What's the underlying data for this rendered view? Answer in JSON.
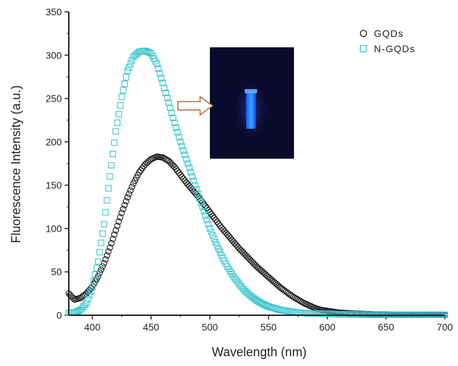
{
  "chart_data": {
    "type": "scatter",
    "xlabel": "Wavelength (nm)",
    "ylabel": "Fluorescence Intensity (a.u.)",
    "xlim": [
      380,
      700
    ],
    "ylim": [
      0,
      350
    ],
    "x_ticks": [
      400,
      450,
      500,
      550,
      600,
      650,
      700
    ],
    "y_ticks": [
      0,
      50,
      100,
      150,
      200,
      250,
      300,
      350
    ],
    "legend_position": "top-right",
    "inset": "photo of vial glowing blue under UV light, with arrow pointing from N-GQDs peak",
    "series": [
      {
        "name": "GQDs",
        "marker": "circle",
        "color": "#1a1a1a",
        "x": [
          380,
          385,
          390,
          395,
          400,
          405,
          410,
          415,
          420,
          425,
          430,
          435,
          440,
          445,
          450,
          455,
          460,
          465,
          470,
          475,
          480,
          485,
          490,
          495,
          500,
          505,
          510,
          515,
          520,
          525,
          530,
          535,
          540,
          545,
          550,
          555,
          560,
          565,
          570,
          575,
          580,
          585,
          590,
          595,
          600,
          605,
          610,
          620,
          630,
          640,
          650,
          660,
          670,
          680,
          690,
          700
        ],
        "y": [
          25,
          18,
          20,
          25,
          33,
          45,
          60,
          78,
          98,
          118,
          136,
          152,
          165,
          174,
          180,
          183,
          182,
          178,
          171,
          162,
          153,
          145,
          137,
          128,
          119,
          110,
          101,
          93,
          85,
          77,
          70,
          63,
          56,
          50,
          44,
          38,
          32,
          27,
          22,
          18,
          14,
          11,
          8,
          6,
          5,
          4,
          3,
          2,
          1.5,
          1,
          1,
          0.5,
          0.5,
          0.5,
          0.5,
          0.5
        ]
      },
      {
        "name": "N-GQDs",
        "marker": "square",
        "color": "#3cc6cc",
        "x": [
          380,
          385,
          390,
          395,
          400,
          405,
          410,
          415,
          420,
          425,
          430,
          435,
          440,
          445,
          450,
          455,
          460,
          465,
          470,
          475,
          480,
          485,
          490,
          495,
          500,
          505,
          510,
          515,
          520,
          525,
          530,
          535,
          540,
          545,
          550,
          555,
          560,
          565,
          570,
          575,
          580,
          585,
          590,
          600,
          610,
          620,
          640,
          660,
          680,
          700
        ],
        "y": [
          3,
          3,
          6,
          14,
          32,
          62,
          105,
          160,
          212,
          252,
          282,
          298,
          304,
          305,
          302,
          290,
          268,
          245,
          222,
          200,
          180,
          160,
          140,
          120,
          100,
          84,
          69,
          56,
          45,
          36,
          28,
          22,
          17,
          13,
          10,
          8,
          6,
          5,
          4,
          3,
          2.5,
          2,
          2,
          1.5,
          1,
          1,
          0.5,
          0.5,
          0.5,
          0.5
        ]
      }
    ]
  }
}
